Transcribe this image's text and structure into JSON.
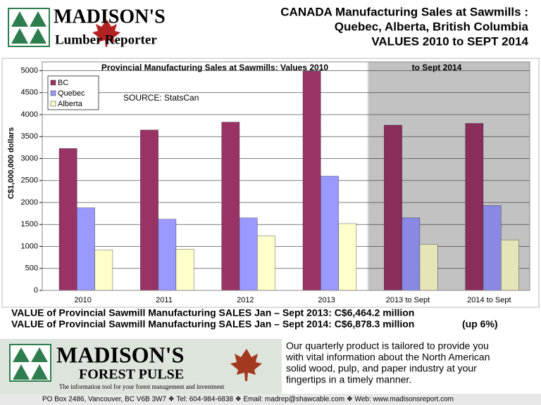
{
  "header": {
    "logo_name": "MADISON'S",
    "logo_tagline": "Lumber Reporter",
    "title_lines": [
      "CANADA Manufacturing Sales at Sawmills :",
      "Quebec, Alberta, British Columbia",
      "VALUES 2010 to SEPT 2014"
    ]
  },
  "chart_data": {
    "type": "bar",
    "title": "Provincial Manufacturing Sales at Sawmills: Values 2010",
    "subtitle": "to Sept 2014",
    "annotation": "SOURCE: StatsCan",
    "ylabel": "C$1,000,000 dollars",
    "categories": [
      "2010",
      "2011",
      "2012",
      "2013",
      "2013 to Sept",
      "2014 to Sept"
    ],
    "series": [
      {
        "name": "BC",
        "color": "#993366",
        "values": [
          3230,
          3650,
          3830,
          4990,
          3760,
          3800
        ]
      },
      {
        "name": "Quebec",
        "color": "#9999ff",
        "values": [
          1880,
          1620,
          1650,
          2600,
          1650,
          1930
        ]
      },
      {
        "name": "Alberta",
        "color": "#ffffcc",
        "values": [
          920,
          940,
          1240,
          1520,
          1050,
          1150
        ]
      }
    ],
    "ylim": [
      0,
      5200
    ],
    "yticks": [
      0,
      500,
      1000,
      1500,
      2000,
      2500,
      3000,
      3500,
      4000,
      4500,
      5000
    ],
    "grid": true,
    "legend": "upper left"
  },
  "notes": {
    "line_2013": "VALUE of Provincial Sawmill Manufacturing SALES  Jan – Sept 2013: C$6,464.2  million",
    "line_2014": "VALUE of Provincial Sawmill Manufacturing SALES  Jan – Sept 2014: C$6,878.3  million",
    "change": "(up 6%)"
  },
  "banner": {
    "logo_name": "MADISON'S",
    "logo_product": "FOREST PULSE",
    "logo_tagline": "The information tool for your forest management and investment",
    "blurb_lines": [
      "Our quarterly product is tailored to provide you",
      "with vital information about the North American",
      "solid wood, pulp, and paper industry at your",
      "fingertips in a timely manner."
    ]
  },
  "footer": {
    "contact": "PO Box 2486, Vancouver, BC  V6B 3W7 ❖ Tel: 604-984-6838 ❖    Email: madrep@shawcable.com ❖ Web: www.madisonsreport.com"
  }
}
